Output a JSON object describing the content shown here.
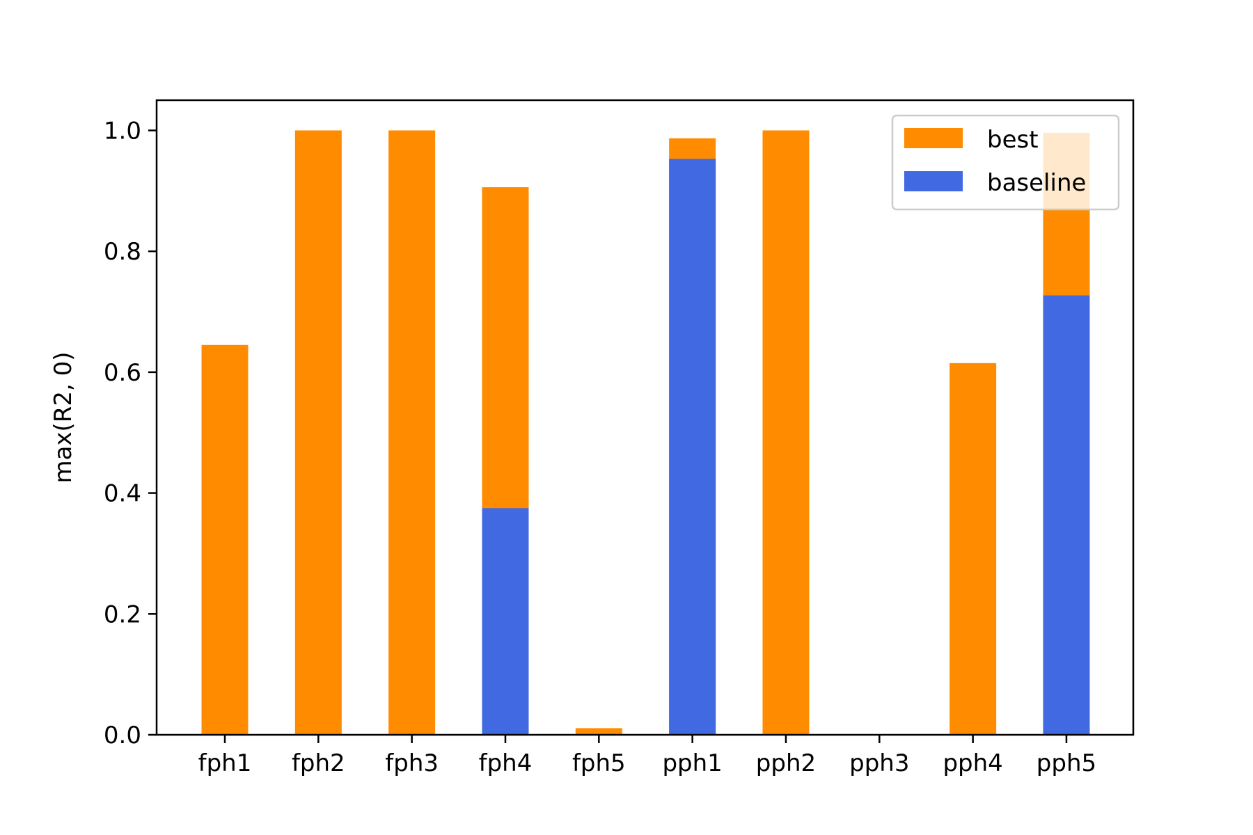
{
  "chart_data": {
    "type": "bar",
    "stacked": false,
    "overlay": true,
    "categories": [
      "fph1",
      "fph2",
      "fph3",
      "fph4",
      "fph5",
      "pph1",
      "pph2",
      "pph3",
      "pph4",
      "pph5"
    ],
    "series": [
      {
        "name": "best",
        "color": "#ff8c00",
        "values": [
          0.645,
          1.0,
          1.0,
          0.906,
          0.011,
          0.987,
          1.0,
          0.0,
          0.615,
          0.996
        ]
      },
      {
        "name": "baseline",
        "color": "#4169e1",
        "values": [
          0.0,
          0.0,
          0.0,
          0.375,
          0.0,
          0.953,
          0.0,
          0.0,
          0.0,
          0.727
        ]
      }
    ],
    "title": "",
    "xlabel": "",
    "ylabel": "max(R2, 0)",
    "ylim": [
      0,
      1.05
    ],
    "yticks": [
      "0.0",
      "0.2",
      "0.4",
      "0.6",
      "0.8",
      "1.0"
    ],
    "grid": false,
    "legend": "top-right"
  }
}
